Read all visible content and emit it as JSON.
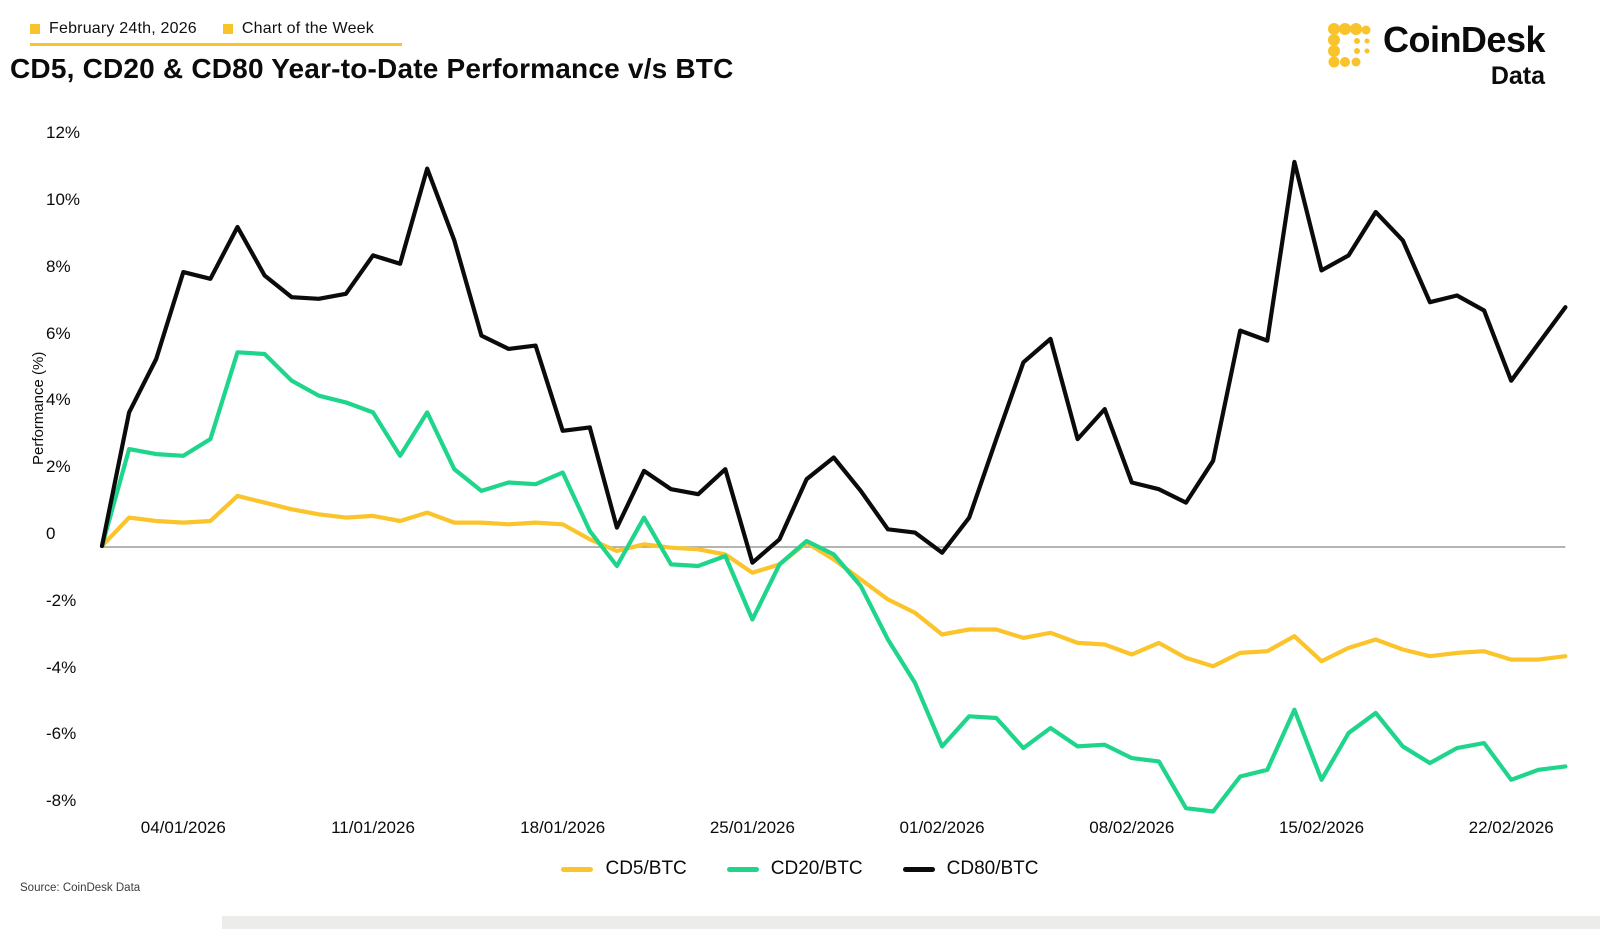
{
  "header": {
    "date_label": "February 24th, 2026",
    "series_label": "Chart of the Week"
  },
  "title": "CD5, CD20 & CD80 Year-to-Date Performance v/s BTC",
  "logo": {
    "brand": "CoinDesk",
    "sub": "Data"
  },
  "source": "Source: CoinDesk Data",
  "colors": {
    "accent_yellow": "#F9C32B",
    "cd5_yellow": "#FAC42A",
    "cd20_green": "#1FD58C",
    "cd80_black": "#0B0B0B",
    "zero_line": "#9B9B9B",
    "bottom_bar": "#ECECEA"
  },
  "chart_data": {
    "type": "line",
    "title": "CD5, CD20 & CD80 Year-to-Date Performance v/s BTC",
    "xlabel": "",
    "ylabel": "Performance (%)",
    "ylim": [
      -8,
      12
    ],
    "yticks": [
      12,
      10,
      8,
      6,
      4,
      2,
      0,
      -2,
      -4,
      -6,
      -8
    ],
    "ytick_labels": [
      "12%",
      "10%",
      "8%",
      "6%",
      "4%",
      "2%",
      "0",
      "-2%",
      "-4%",
      "-6%",
      "-8%"
    ],
    "grid": "zero-line-only",
    "legend_position": "bottom",
    "x_start_date": "01/01/2026",
    "x_end_date": "24/02/2026",
    "x_tick_labels": [
      "04/01/2026",
      "11/01/2026",
      "18/01/2026",
      "25/01/2026",
      "01/02/2026",
      "08/02/2026",
      "15/02/2026",
      "22/02/2026"
    ],
    "x_tick_day_index": [
      3,
      10,
      17,
      24,
      31,
      38,
      45,
      52
    ],
    "units": "percent",
    "series": [
      {
        "name": "CD5/BTC",
        "color": "#FAC42A",
        "values": [
          0,
          0.85,
          0.75,
          0.7,
          0.75,
          1.5,
          1.3,
          1.1,
          0.95,
          0.85,
          0.9,
          0.75,
          1.0,
          0.7,
          0.7,
          0.65,
          0.7,
          0.65,
          0.2,
          -0.15,
          0.05,
          -0.05,
          -0.1,
          -0.25,
          -0.8,
          -0.55,
          0.1,
          -0.4,
          -1.0,
          -1.6,
          -2.0,
          -2.65,
          -2.5,
          -2.5,
          -2.75,
          -2.6,
          -2.9,
          -2.95,
          -3.25,
          -2.9,
          -3.35,
          -3.6,
          -3.2,
          -3.15,
          -2.7,
          -3.45,
          -3.05,
          -2.8,
          -3.1,
          -3.3,
          -3.2,
          -3.15,
          -3.4,
          -3.4,
          -3.3
        ]
      },
      {
        "name": "CD20/BTC",
        "color": "#1FD58C",
        "values": [
          0,
          2.9,
          2.75,
          2.7,
          3.2,
          5.8,
          5.75,
          4.95,
          4.5,
          4.3,
          4.0,
          2.7,
          4.0,
          2.3,
          1.65,
          1.9,
          1.85,
          2.2,
          0.45,
          -0.6,
          0.85,
          -0.55,
          -0.6,
          -0.3,
          -2.2,
          -0.55,
          0.15,
          -0.25,
          -1.2,
          -2.8,
          -4.1,
          -6.0,
          -5.1,
          -5.15,
          -6.05,
          -5.45,
          -6.0,
          -5.95,
          -6.35,
          -6.45,
          -7.85,
          -7.95,
          -6.9,
          -6.7,
          -4.9,
          -7.0,
          -5.6,
          -5.0,
          -6.0,
          -6.5,
          -6.05,
          -5.9,
          -7.0,
          -6.7,
          -6.6
        ]
      },
      {
        "name": "CD80/BTC",
        "color": "#0B0B0B",
        "values": [
          0,
          4.0,
          5.6,
          8.2,
          8.0,
          9.55,
          8.1,
          7.45,
          7.4,
          7.55,
          8.7,
          8.45,
          11.3,
          9.15,
          6.3,
          5.9,
          6.0,
          3.45,
          3.55,
          0.55,
          2.25,
          1.7,
          1.55,
          2.3,
          -0.5,
          0.2,
          2.0,
          2.65,
          1.65,
          0.5,
          0.4,
          -0.2,
          0.85,
          3.2,
          5.5,
          6.2,
          3.2,
          4.1,
          1.9,
          1.7,
          1.3,
          2.55,
          6.45,
          6.15,
          11.5,
          8.25,
          8.7,
          10.0,
          9.15,
          7.3,
          7.5,
          7.05,
          4.95,
          6.05,
          7.15
        ]
      }
    ]
  }
}
